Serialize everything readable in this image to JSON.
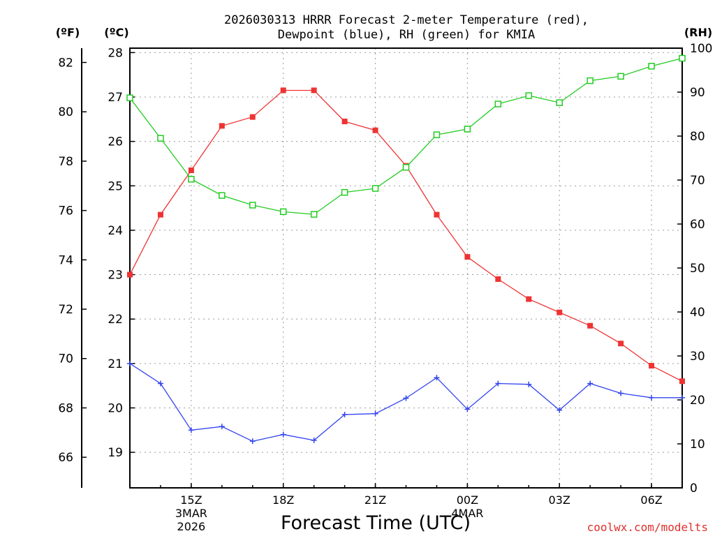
{
  "chart_data": {
    "type": "line",
    "title_line1": "2026030313 HRRR Forecast 2-meter Temperature (red),",
    "title_line2": "Dewpoint (blue), RH (green) for KMIA",
    "xlabel": "Forecast Time (UTC)",
    "credit": "coolwx.com/modelts",
    "left_unit_f": "(ºF)",
    "left_unit_c": "(ºC)",
    "right_unit": "(RH)",
    "x_hours": [
      13,
      14,
      15,
      16,
      17,
      18,
      19,
      20,
      21,
      22,
      23,
      24,
      25,
      26,
      27,
      28,
      29,
      30,
      31
    ],
    "x_ticks": [
      {
        "hour": 15,
        "lines": [
          "15Z",
          "3MAR",
          "2026"
        ]
      },
      {
        "hour": 18,
        "lines": [
          "18Z"
        ]
      },
      {
        "hour": 21,
        "lines": [
          "21Z"
        ]
      },
      {
        "hour": 24,
        "lines": [
          "00Z",
          "4MAR"
        ]
      },
      {
        "hour": 27,
        "lines": [
          "03Z"
        ]
      },
      {
        "hour": 30,
        "lines": [
          "06Z"
        ]
      }
    ],
    "xlim": [
      13,
      31
    ],
    "celsius_axis": {
      "range": [
        18.2,
        28.1
      ],
      "ticks": [
        19,
        20,
        21,
        22,
        23,
        24,
        25,
        26,
        27,
        28
      ]
    },
    "fahrenheit_axis": {
      "ticks": [
        66,
        68,
        70,
        72,
        74,
        76,
        78,
        80,
        82
      ]
    },
    "rh_axis": {
      "range": [
        0,
        100
      ],
      "ticks": [
        0,
        10,
        20,
        30,
        40,
        50,
        60,
        70,
        80,
        90,
        100
      ]
    },
    "series": [
      {
        "name": "Temperature",
        "unit": "C",
        "color": "#ee3333",
        "marker": "filled-square",
        "values": [
          23.0,
          24.35,
          25.35,
          26.35,
          26.55,
          27.15,
          27.15,
          26.45,
          26.25,
          25.45,
          24.35,
          23.4,
          22.9,
          22.45,
          22.15,
          21.85,
          21.45,
          20.95,
          20.6
        ]
      },
      {
        "name": "Dewpoint",
        "unit": "C",
        "color": "#3344ee",
        "marker": "plus",
        "values": [
          21.0,
          20.55,
          19.5,
          19.58,
          19.25,
          19.4,
          19.27,
          19.85,
          19.87,
          20.22,
          20.68,
          19.97,
          20.55,
          20.53,
          19.95,
          20.55,
          20.33,
          20.23,
          20.23
        ]
      },
      {
        "name": "RH",
        "unit": "%",
        "color": "#22cc22",
        "marker": "open-square",
        "values": [
          88.7,
          79.5,
          70.2,
          66.5,
          64.3,
          62.8,
          62.2,
          67.2,
          68.1,
          72.9,
          80.3,
          81.6,
          87.3,
          89.2,
          87.6,
          92.6,
          93.6,
          95.9,
          97.7
        ]
      }
    ]
  }
}
